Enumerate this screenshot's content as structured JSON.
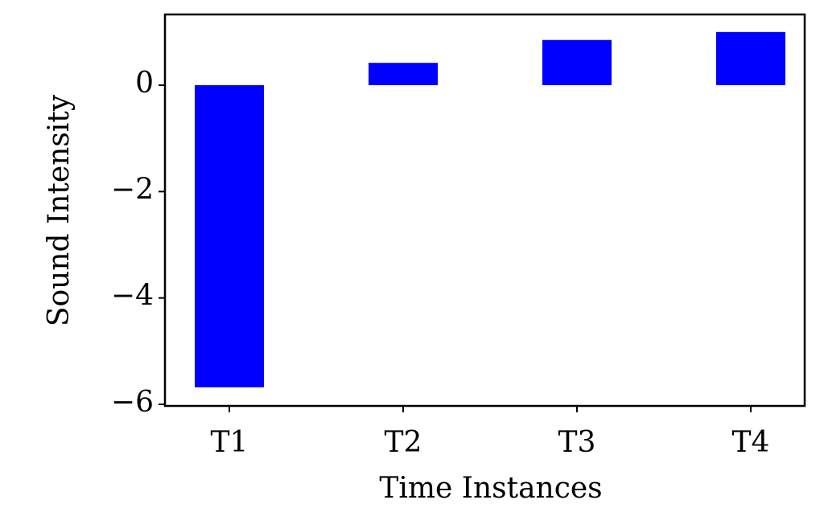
{
  "chart_data": {
    "type": "bar",
    "categories": [
      "T1",
      "T2",
      "T3",
      "T4"
    ],
    "values": [
      -5.68,
      0.42,
      0.85,
      1.0
    ],
    "color": "#0000ff",
    "xlabel": "Time Instances",
    "ylabel": "Sound Intensity",
    "ylim": [
      -6.03,
      1.33
    ],
    "yticks": [
      {
        "value": -6,
        "label": "−6"
      },
      {
        "value": -4,
        "label": "−4"
      },
      {
        "value": -2,
        "label": "−2"
      },
      0
    ],
    "grid": false
  }
}
